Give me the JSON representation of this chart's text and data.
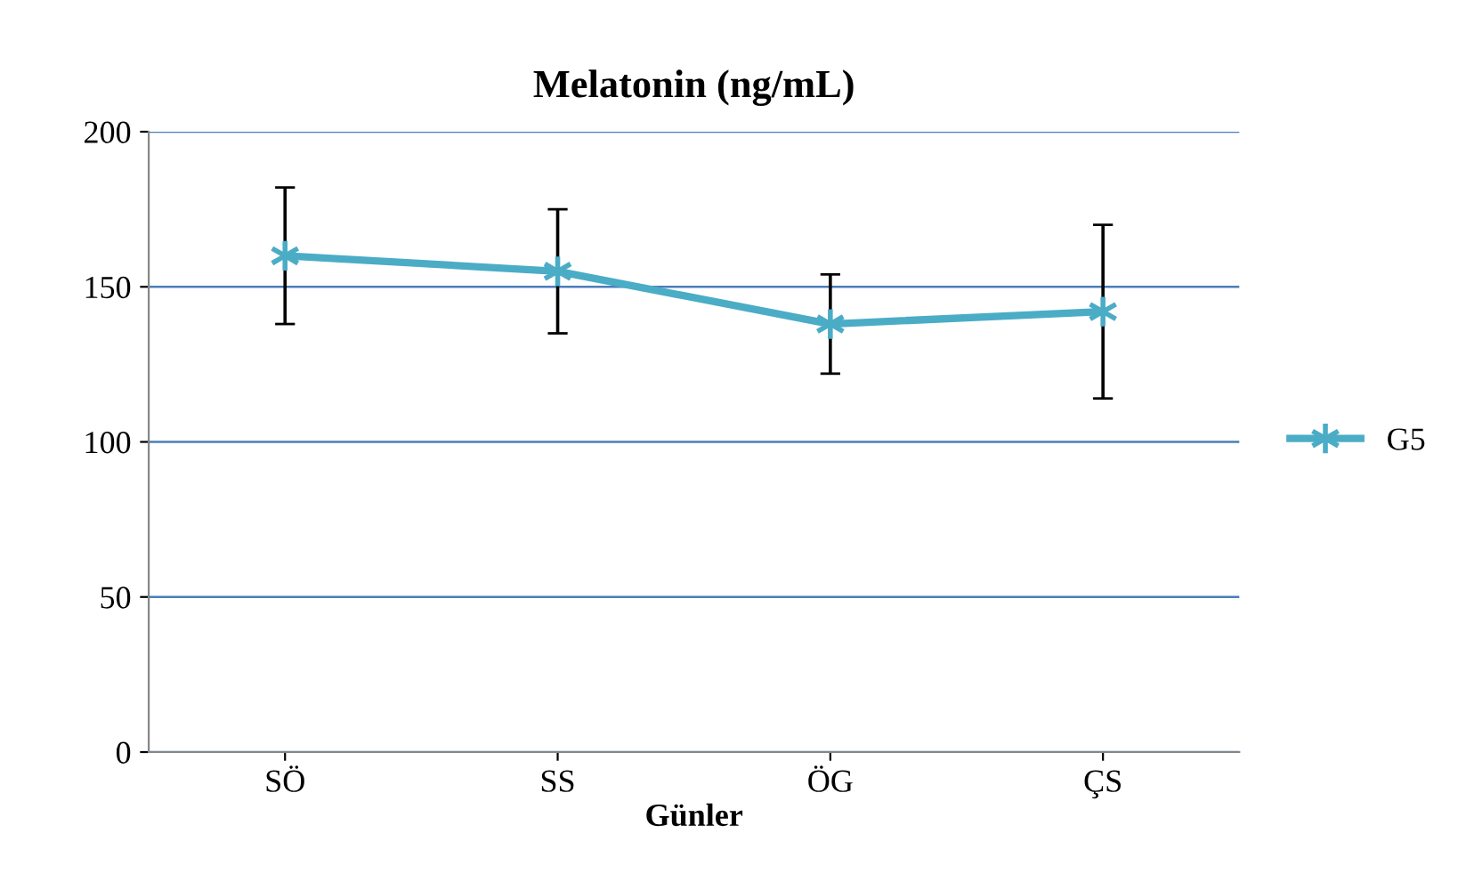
{
  "chart_data": {
    "type": "line",
    "title": "Melatonin (ng/mL)",
    "xlabel": "Günler",
    "categories": [
      "SÖ",
      "SS",
      "ÖG",
      "ÇS"
    ],
    "series": [
      {
        "name": "G5",
        "color": "#4bacc6",
        "values": [
          160,
          155,
          138,
          142
        ],
        "errors": [
          22,
          20,
          16,
          28
        ]
      }
    ],
    "ylim": [
      0,
      200
    ],
    "yticks": [
      0,
      50,
      100,
      150,
      200
    ],
    "grid": "y",
    "legend": "right",
    "marker": "cross",
    "line_style": "solid"
  }
}
